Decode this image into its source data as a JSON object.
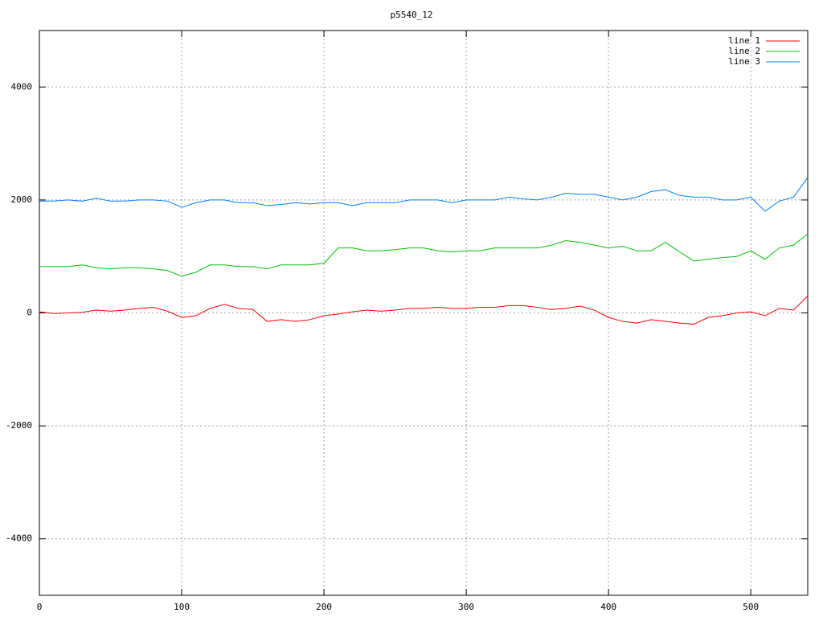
{
  "chart_data": {
    "type": "line",
    "title": "p5540_12",
    "x": [
      0,
      10,
      20,
      30,
      40,
      50,
      60,
      70,
      80,
      90,
      100,
      110,
      120,
      130,
      140,
      150,
      160,
      170,
      180,
      190,
      200,
      210,
      220,
      230,
      240,
      250,
      260,
      270,
      280,
      290,
      300,
      310,
      320,
      330,
      340,
      350,
      360,
      370,
      380,
      390,
      400,
      410,
      420,
      430,
      440,
      450,
      460,
      470,
      480,
      490,
      500,
      510,
      520,
      530,
      540
    ],
    "series": [
      {
        "name": "line 1",
        "color": "#ff0000",
        "values": [
          20,
          -10,
          0,
          10,
          50,
          30,
          50,
          80,
          100,
          30,
          -80,
          -50,
          80,
          150,
          80,
          60,
          -150,
          -120,
          -150,
          -120,
          -50,
          -20,
          20,
          50,
          30,
          50,
          80,
          80,
          100,
          80,
          80,
          100,
          100,
          130,
          130,
          100,
          60,
          80,
          120,
          50,
          -80,
          -150,
          -180,
          -120,
          -150,
          -180,
          -200,
          -80,
          -50,
          0,
          20,
          -50,
          80,
          50,
          300
        ]
      },
      {
        "name": "line 2",
        "color": "#00c000",
        "values": [
          820,
          820,
          820,
          850,
          800,
          780,
          800,
          800,
          780,
          750,
          650,
          720,
          850,
          850,
          820,
          820,
          780,
          850,
          850,
          850,
          880,
          1150,
          1150,
          1100,
          1100,
          1120,
          1150,
          1150,
          1100,
          1080,
          1100,
          1100,
          1150,
          1150,
          1150,
          1150,
          1200,
          1280,
          1250,
          1200,
          1150,
          1180,
          1100,
          1100,
          1250,
          1080,
          920,
          950,
          980,
          1000,
          1100,
          950,
          1150,
          1200,
          1400
        ]
      },
      {
        "name": "line 3",
        "color": "#0080ff",
        "values": [
          1980,
          1980,
          2000,
          1980,
          2030,
          1980,
          1980,
          2000,
          2000,
          1980,
          1870,
          1950,
          2000,
          2000,
          1950,
          1950,
          1900,
          1920,
          1950,
          1930,
          1950,
          1950,
          1900,
          1950,
          1950,
          1950,
          2000,
          2000,
          2000,
          1950,
          2000,
          2000,
          2000,
          2050,
          2020,
          2000,
          2050,
          2120,
          2100,
          2100,
          2050,
          2000,
          2050,
          2150,
          2180,
          2080,
          2050,
          2050,
          2000,
          2000,
          2050,
          1800,
          1980,
          2050,
          2400
        ]
      }
    ],
    "xlim": [
      0,
      540
    ],
    "xticks": [
      0,
      100,
      200,
      300,
      400,
      500
    ],
    "ylim": [
      -5000,
      5000
    ],
    "yticks": [
      -4000,
      -2000,
      0,
      2000,
      4000
    ],
    "grid": true,
    "legend": "top-right"
  }
}
